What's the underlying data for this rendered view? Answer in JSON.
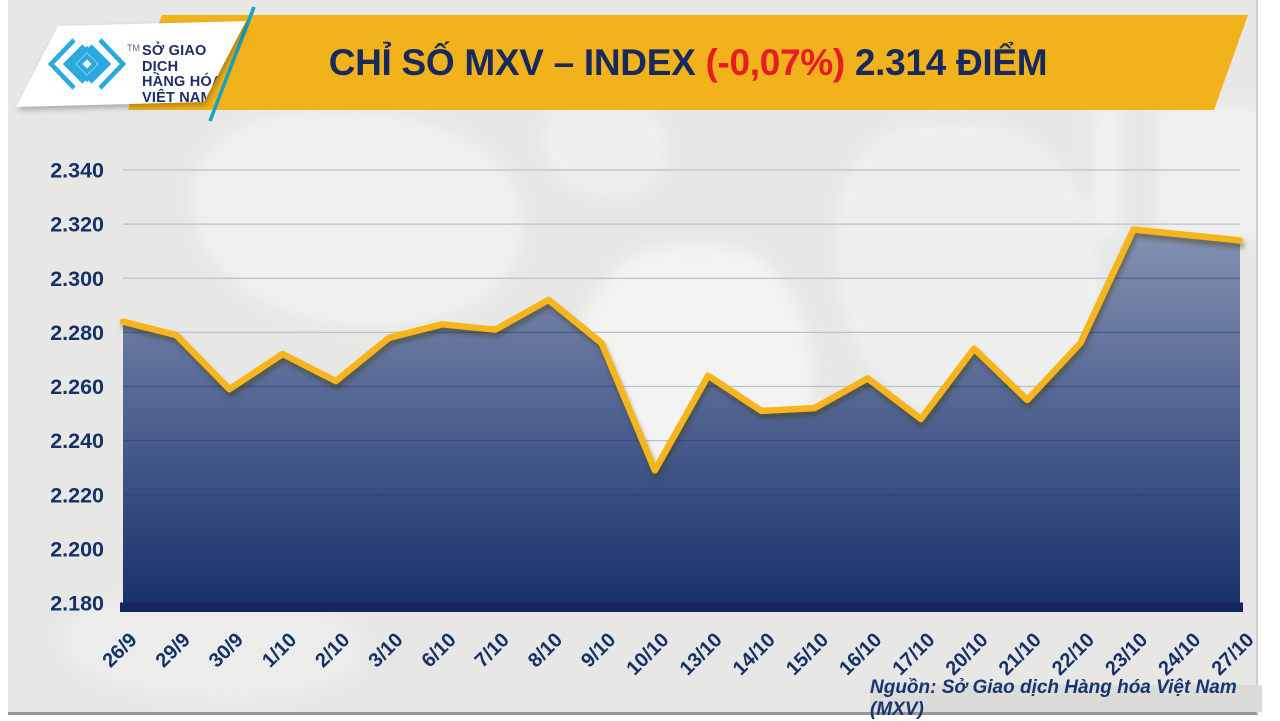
{
  "header": {
    "logo": {
      "icon": "mxv-chevron-logo",
      "trademark": "TM",
      "org_lines": [
        "SỞ GIAO DỊCH",
        "HÀNG HÓA",
        "VIỆT NAM"
      ],
      "text_color": "#1d2d66",
      "glyph_color": "#29a9dc"
    },
    "banner_color": "#F2B21B",
    "title_prefix": "CHỈ SỐ MXV – INDEX ",
    "title_change": "(-0,07%)",
    "title_suffix": " 2.314 ĐIỂM",
    "title_color": "#17295e",
    "change_color": "#e81c24"
  },
  "chart_data": {
    "type": "area",
    "title": "CHỈ SỐ MXV – INDEX (-0,07%) 2.314 ĐIỂM",
    "categories": [
      "26/9",
      "29/9",
      "30/9",
      "1/10",
      "2/10",
      "3/10",
      "6/10",
      "7/10",
      "8/10",
      "9/10",
      "10/10",
      "13/10",
      "14/10",
      "15/10",
      "16/10",
      "17/10",
      "20/10",
      "21/10",
      "22/10",
      "23/10",
      "24/10",
      "27/10"
    ],
    "values": [
      2284,
      2279,
      2259,
      2272,
      2262,
      2278,
      2283,
      2281,
      2292,
      2276,
      2229,
      2264,
      2251,
      2252,
      2263,
      2248,
      2274,
      2255,
      2276,
      2318,
      2316,
      2314
    ],
    "last_value_label": "2.314",
    "change_percent_label": "-0,07%",
    "ylim": [
      2180,
      2340
    ],
    "ytick_step": 20,
    "ytick_labels": [
      "2.340",
      "2.320",
      "2.300",
      "2.280",
      "2.260",
      "2.240",
      "2.220",
      "2.200",
      "2.180"
    ],
    "xlabel": "",
    "ylabel": "",
    "grid": true,
    "legend": false,
    "line_color": "#F6B61B",
    "fill_gradient_top": "#95A1BD",
    "fill_gradient_mid": "#66769e",
    "fill_gradient_bottom": "#16306B",
    "axis_bar_color": "#14265B",
    "gridline_color": "#b7c1d2",
    "tick_label_color": "#163068"
  },
  "footer": {
    "source": "Nguồn: Sở Giao dịch Hàng hóa Việt Nam (MXV)",
    "source_color": "#17356f"
  }
}
